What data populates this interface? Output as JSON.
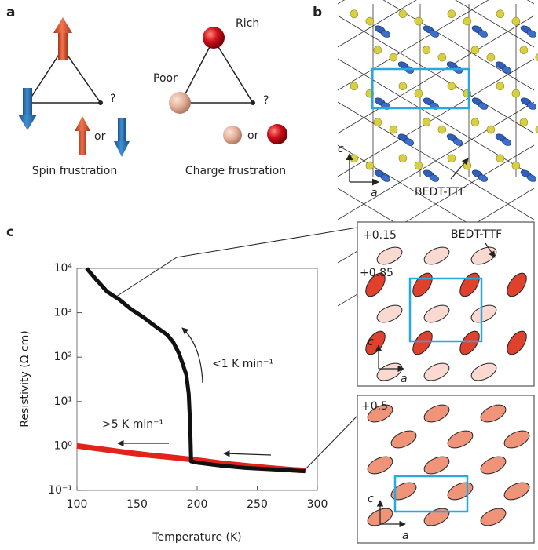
{
  "panel_a": {
    "label": "a",
    "spin_caption": "Spin frustration",
    "charge_caption": "Charge frustration",
    "rich": "Rich",
    "poor": "Poor",
    "question_spin": "?",
    "question_charge": "?",
    "or_spin": "or",
    "or_charge": "or"
  },
  "panel_b": {
    "label": "b",
    "axis_c": "c",
    "axis_a": "a",
    "molecule": "BEDT-TTF"
  },
  "panel_c": {
    "label": "c",
    "inset_top": {
      "charge_low": "+0.15",
      "charge_high": "+0.85",
      "molecule": "BEDT-TTF",
      "axis_c": "c",
      "axis_a": "a"
    },
    "inset_bottom": {
      "charge": "+0.5",
      "axis_c": "c",
      "axis_a": "a"
    }
  },
  "chart_data": {
    "type": "line",
    "yscale": "log",
    "xlabel": "Temperature (K)",
    "ylabel": "Resistivity (Ω cm)",
    "xlim": [
      100,
      300
    ],
    "xticks": [
      100,
      150,
      200,
      250,
      300
    ],
    "ylim": [
      0.1,
      10000
    ],
    "yticks": [
      {
        "value": 0.1,
        "label": "10⁻¹"
      },
      {
        "value": 1,
        "label": "10⁰"
      },
      {
        "value": 10,
        "label": "10¹"
      },
      {
        "value": 100,
        "label": "10²"
      },
      {
        "value": 1000,
        "label": "10³"
      },
      {
        "value": 10000,
        "label": "10⁴"
      }
    ],
    "annotations": [
      "<1 K min⁻¹",
      ">5 K min⁻¹"
    ],
    "series": [
      {
        "name": "<1 K min⁻¹",
        "color": "#111111",
        "x": [
          108,
          115,
          125,
          135,
          145,
          155,
          165,
          175,
          180,
          185,
          188,
          191,
          193,
          194,
          194.5,
          195,
          200,
          220,
          240,
          260,
          280,
          290
        ],
        "values": [
          10000,
          6000,
          3000,
          2000,
          1200,
          800,
          500,
          320,
          220,
          120,
          70,
          40,
          15,
          4,
          1.5,
          0.45,
          0.42,
          0.36,
          0.32,
          0.3,
          0.28,
          0.27
        ]
      },
      {
        "name": ">5 K min⁻¹",
        "color": "#e3231b",
        "x": [
          100,
          120,
          140,
          160,
          180,
          200,
          220,
          240,
          260,
          280,
          290
        ],
        "values": [
          1.0,
          0.85,
          0.72,
          0.62,
          0.55,
          0.48,
          0.41,
          0.36,
          0.32,
          0.29,
          0.28
        ]
      }
    ]
  }
}
